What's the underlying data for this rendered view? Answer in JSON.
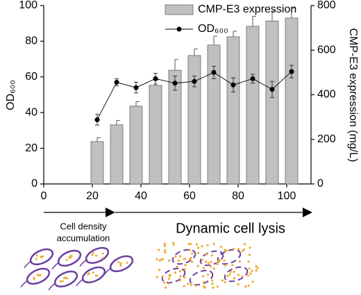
{
  "chart_data": {
    "type": "bar_line",
    "series": [
      {
        "name": "CMP-E3 expression",
        "kind": "bar",
        "axis": "y2",
        "color": "#c0c0c0",
        "x": [
          22,
          30,
          38,
          46,
          54,
          62,
          70,
          78,
          86,
          94,
          102
        ],
        "values": [
          190,
          265,
          349,
          442,
          510,
          576,
          623,
          660,
          707,
          731,
          744
        ],
        "errors": [
          17,
          20,
          20,
          25,
          48,
          30,
          40,
          25,
          45,
          45,
          45
        ]
      },
      {
        "name": "OD₆₀₀",
        "kind": "line",
        "axis": "y",
        "color": "#000000",
        "x": [
          22,
          30,
          38,
          46,
          54,
          62,
          70,
          78,
          86,
          94,
          102
        ],
        "values": [
          36,
          57,
          54,
          59,
          56.5,
          57.5,
          62.5,
          55.5,
          59,
          53,
          63
        ],
        "errors": [
          3,
          2,
          3,
          3,
          4,
          3,
          3.5,
          4,
          2.5,
          4.5,
          3.5
        ]
      }
    ],
    "xlim": [
      0,
      110
    ],
    "xticks": [
      0,
      20,
      40,
      60,
      80,
      100
    ],
    "ylim": [
      0,
      100
    ],
    "yticks": [
      0,
      20,
      40,
      60,
      80,
      100
    ],
    "ylabel": "OD₆₀₀",
    "y2lim": [
      0,
      800
    ],
    "y2ticks": [
      0,
      200,
      400,
      600,
      800
    ],
    "y2label": "CMP-E3 expression (mg/L)",
    "annotations": {
      "phase1": [
        "Cell density",
        "accumulation"
      ],
      "phase2": "Dynamic cell lysis"
    }
  }
}
